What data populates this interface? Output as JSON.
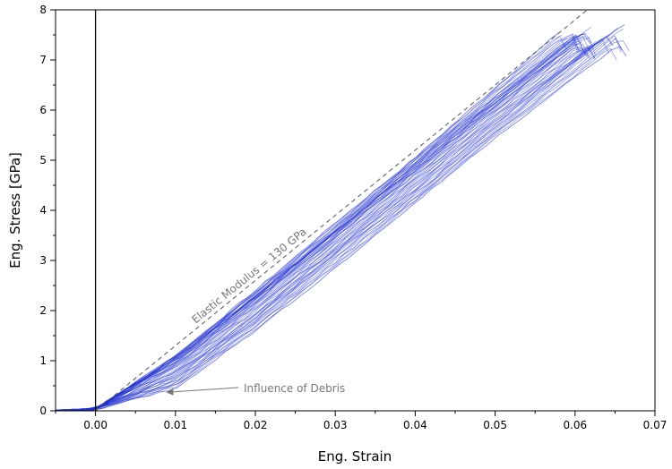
{
  "chart_data": {
    "type": "line",
    "xlabel": "Eng. Strain",
    "ylabel": "Eng. Stress [GPa]",
    "xlim": [
      -0.005,
      0.07
    ],
    "ylim": [
      0,
      8
    ],
    "xticks": [
      "0.00",
      "0.01",
      "0.02",
      "0.03",
      "0.04",
      "0.05",
      "0.06",
      "0.07"
    ],
    "yticks": [
      "0",
      "1",
      "2",
      "3",
      "4",
      "5",
      "6",
      "7",
      "8"
    ],
    "grid": false,
    "series_color": "#1f2fd0",
    "reference_line": {
      "label": "Elastic Modulus = 130 GPa",
      "modulus_gpa": 130,
      "style": "dashed",
      "color": "#555555"
    },
    "annotations": [
      {
        "text": "Influence of Debris",
        "x": 0.0085,
        "y": 0.37,
        "color": "#777777"
      }
    ],
    "series_summary": {
      "count": 40,
      "description_range": "stress-strain curves",
      "failure_strain_range": [
        0.057,
        0.066
      ],
      "failure_stress_range": [
        7.2,
        7.75
      ]
    },
    "series": [
      {
        "x": [
          -0.005,
          0.0,
          0.01,
          0.02,
          0.03,
          0.04,
          0.05,
          0.058
        ],
        "y": [
          0,
          0.04,
          1.1,
          2.4,
          3.75,
          5.05,
          6.45,
          7.55
        ]
      },
      {
        "x": [
          -0.005,
          0.0,
          0.01,
          0.02,
          0.03,
          0.04,
          0.05,
          0.06
        ],
        "y": [
          0,
          0.04,
          1.05,
          2.3,
          3.6,
          4.95,
          6.25,
          7.5
        ]
      },
      {
        "x": [
          -0.005,
          0.0,
          0.01,
          0.02,
          0.03,
          0.04,
          0.05,
          0.062
        ],
        "y": [
          0,
          0.04,
          1.0,
          2.25,
          3.55,
          4.85,
          6.15,
          7.65
        ]
      },
      {
        "x": [
          -0.005,
          0.0,
          0.01,
          0.02,
          0.03,
          0.04,
          0.05,
          0.06
        ],
        "y": [
          0,
          0.04,
          0.9,
          2.15,
          3.45,
          4.75,
          6.05,
          7.3
        ]
      },
      {
        "x": [
          -0.005,
          0.0,
          0.01,
          0.02,
          0.03,
          0.04,
          0.05,
          0.063
        ],
        "y": [
          0,
          0.03,
          0.75,
          1.95,
          3.25,
          4.55,
          5.85,
          7.4
        ]
      },
      {
        "x": [
          -0.005,
          0.0,
          0.01,
          0.02,
          0.03,
          0.04,
          0.05,
          0.066
        ],
        "y": [
          0,
          0.03,
          0.6,
          1.8,
          3.1,
          4.35,
          5.65,
          7.75
        ]
      },
      {
        "x": [
          -0.005,
          0.0,
          0.01,
          0.02,
          0.03,
          0.04,
          0.05,
          0.065
        ],
        "y": [
          0,
          0.03,
          0.45,
          1.6,
          2.85,
          4.15,
          5.45,
          7.25
        ]
      }
    ]
  }
}
